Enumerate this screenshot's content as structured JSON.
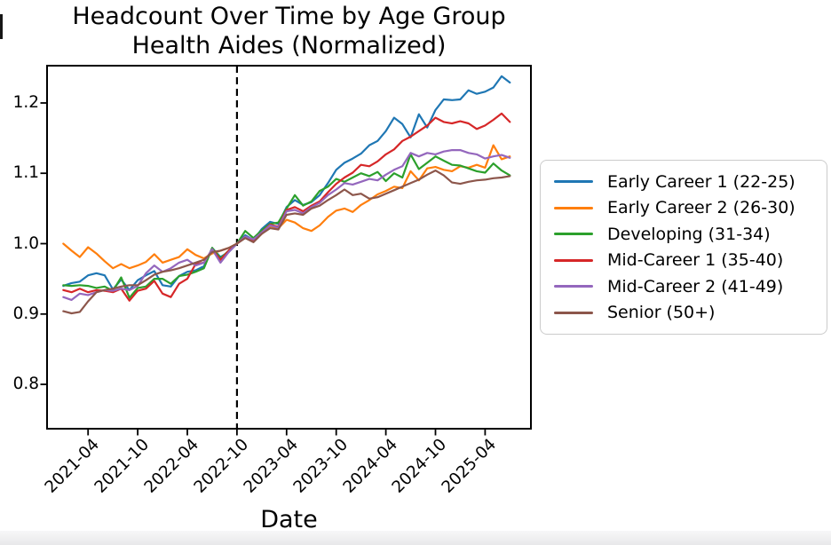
{
  "figure": {
    "background_color": "#ffffff",
    "axes_border_color": "#000000",
    "legend_border_color": "#cbcbcb"
  },
  "chart_data": {
    "type": "line",
    "title_line1": "Headcount Over Time by Age Group",
    "title_line2": "Health Aides (Normalized)",
    "xlabel": "Date",
    "ylabel": "",
    "ylim": [
      0.737,
      1.254
    ],
    "grid": false,
    "legend_position": "right-outside",
    "x": [
      "2021-01",
      "2021-02",
      "2021-03",
      "2021-04",
      "2021-05",
      "2021-06",
      "2021-07",
      "2021-08",
      "2021-09",
      "2021-10",
      "2021-11",
      "2021-12",
      "2022-01",
      "2022-02",
      "2022-03",
      "2022-04",
      "2022-05",
      "2022-06",
      "2022-07",
      "2022-08",
      "2022-09",
      "2022-10",
      "2022-11",
      "2022-12",
      "2023-01",
      "2023-02",
      "2023-03",
      "2023-04",
      "2023-05",
      "2023-06",
      "2023-07",
      "2023-08",
      "2023-09",
      "2023-10",
      "2023-11",
      "2023-12",
      "2024-01",
      "2024-02",
      "2024-03",
      "2024-04",
      "2024-05",
      "2024-06",
      "2024-07",
      "2024-08",
      "2024-09",
      "2024-10",
      "2024-11",
      "2024-12",
      "2025-01",
      "2025-02",
      "2025-03",
      "2025-04",
      "2025-05",
      "2025-06",
      "2025-07"
    ],
    "xticks": [
      {
        "index": 3,
        "label": "2021-04"
      },
      {
        "index": 9,
        "label": "2021-10"
      },
      {
        "index": 15,
        "label": "2022-04"
      },
      {
        "index": 21,
        "label": "2022-10"
      },
      {
        "index": 27,
        "label": "2023-04"
      },
      {
        "index": 33,
        "label": "2023-10"
      },
      {
        "index": 39,
        "label": "2024-04"
      },
      {
        "index": 45,
        "label": "2024-10"
      },
      {
        "index": 51,
        "label": "2025-04"
      }
    ],
    "yticks": [
      {
        "value": 0.8,
        "label": "0.8"
      },
      {
        "value": 0.9,
        "label": "0.9"
      },
      {
        "value": 1.0,
        "label": "1.0"
      },
      {
        "value": 1.1,
        "label": "1.1"
      },
      {
        "value": 1.2,
        "label": "1.2"
      }
    ],
    "vline": {
      "at_index": 21,
      "at_label": "2022-10",
      "style": "dashed",
      "color": "#000000"
    },
    "series": [
      {
        "name": "Early Career 1 (22-25)",
        "color": "#1f77b4",
        "values": [
          0.94,
          0.944,
          0.946,
          0.955,
          0.958,
          0.955,
          0.935,
          0.949,
          0.934,
          0.948,
          0.955,
          0.961,
          0.941,
          0.939,
          0.954,
          0.96,
          0.962,
          0.968,
          0.994,
          0.981,
          0.988,
          1.0,
          1.012,
          1.005,
          1.021,
          1.031,
          1.028,
          1.052,
          1.062,
          1.055,
          1.059,
          1.069,
          1.086,
          1.105,
          1.115,
          1.121,
          1.128,
          1.14,
          1.146,
          1.16,
          1.179,
          1.17,
          1.151,
          1.184,
          1.165,
          1.19,
          1.205,
          1.204,
          1.205,
          1.218,
          1.213,
          1.216,
          1.222,
          1.238,
          1.229
        ]
      },
      {
        "name": "Early Career 2 (26-30)",
        "color": "#ff7f0e",
        "values": [
          1.0,
          0.99,
          0.981,
          0.995,
          0.986,
          0.975,
          0.965,
          0.971,
          0.965,
          0.969,
          0.974,
          0.985,
          0.973,
          0.977,
          0.981,
          0.992,
          0.984,
          0.979,
          0.986,
          0.99,
          0.994,
          1.0,
          1.009,
          1.004,
          1.014,
          1.025,
          1.022,
          1.034,
          1.03,
          1.022,
          1.018,
          1.026,
          1.038,
          1.047,
          1.05,
          1.045,
          1.055,
          1.062,
          1.07,
          1.075,
          1.081,
          1.079,
          1.103,
          1.09,
          1.107,
          1.109,
          1.105,
          1.103,
          1.11,
          1.108,
          1.112,
          1.108,
          1.14,
          1.12,
          1.124
        ]
      },
      {
        "name": "Developing (31-34)",
        "color": "#2ca02c",
        "values": [
          0.941,
          0.94,
          0.941,
          0.94,
          0.937,
          0.939,
          0.933,
          0.952,
          0.923,
          0.937,
          0.939,
          0.95,
          0.95,
          0.943,
          0.954,
          0.956,
          0.96,
          0.965,
          0.994,
          0.979,
          0.99,
          1.0,
          1.018,
          1.008,
          1.019,
          1.028,
          1.03,
          1.05,
          1.069,
          1.054,
          1.06,
          1.075,
          1.081,
          1.092,
          1.088,
          1.094,
          1.1,
          1.096,
          1.102,
          1.089,
          1.1,
          1.094,
          1.127,
          1.106,
          1.115,
          1.124,
          1.118,
          1.112,
          1.111,
          1.107,
          1.103,
          1.101,
          1.114,
          1.104,
          1.097
        ]
      },
      {
        "name": "Mid-Career 1 (35-40)",
        "color": "#d62728",
        "values": [
          0.934,
          0.931,
          0.936,
          0.931,
          0.934,
          0.933,
          0.931,
          0.936,
          0.919,
          0.933,
          0.936,
          0.947,
          0.929,
          0.924,
          0.943,
          0.95,
          0.971,
          0.973,
          0.992,
          0.977,
          0.99,
          1.0,
          1.01,
          1.005,
          1.016,
          1.027,
          1.024,
          1.048,
          1.052,
          1.046,
          1.054,
          1.06,
          1.073,
          1.085,
          1.094,
          1.101,
          1.112,
          1.11,
          1.117,
          1.127,
          1.134,
          1.146,
          1.152,
          1.16,
          1.168,
          1.179,
          1.173,
          1.171,
          1.174,
          1.171,
          1.163,
          1.168,
          1.176,
          1.185,
          1.173
        ]
      },
      {
        "name": "Mid-Career 2 (41-49)",
        "color": "#9467bd",
        "values": [
          0.924,
          0.92,
          0.929,
          0.927,
          0.931,
          0.934,
          0.933,
          0.936,
          0.934,
          0.94,
          0.958,
          0.969,
          0.96,
          0.965,
          0.973,
          0.977,
          0.969,
          0.973,
          0.992,
          0.973,
          0.988,
          1.0,
          1.01,
          1.006,
          1.016,
          1.026,
          1.023,
          1.046,
          1.048,
          1.043,
          1.052,
          1.058,
          1.069,
          1.077,
          1.086,
          1.084,
          1.088,
          1.092,
          1.09,
          1.098,
          1.105,
          1.11,
          1.129,
          1.124,
          1.129,
          1.127,
          1.131,
          1.133,
          1.133,
          1.129,
          1.127,
          1.121,
          1.124,
          1.126,
          1.122
        ]
      },
      {
        "name": "Senior (50+)",
        "color": "#8c564b",
        "values": [
          0.904,
          0.901,
          0.903,
          0.918,
          0.931,
          0.934,
          0.936,
          0.939,
          0.941,
          0.941,
          0.948,
          0.956,
          0.96,
          0.962,
          0.965,
          0.969,
          0.973,
          0.977,
          0.988,
          0.99,
          0.994,
          1.0,
          1.008,
          1.002,
          1.014,
          1.022,
          1.02,
          1.041,
          1.043,
          1.041,
          1.05,
          1.054,
          1.062,
          1.069,
          1.077,
          1.069,
          1.071,
          1.064,
          1.066,
          1.071,
          1.076,
          1.081,
          1.086,
          1.091,
          1.098,
          1.104,
          1.097,
          1.087,
          1.085,
          1.088,
          1.09,
          1.091,
          1.093,
          1.094,
          1.096
        ]
      }
    ]
  }
}
